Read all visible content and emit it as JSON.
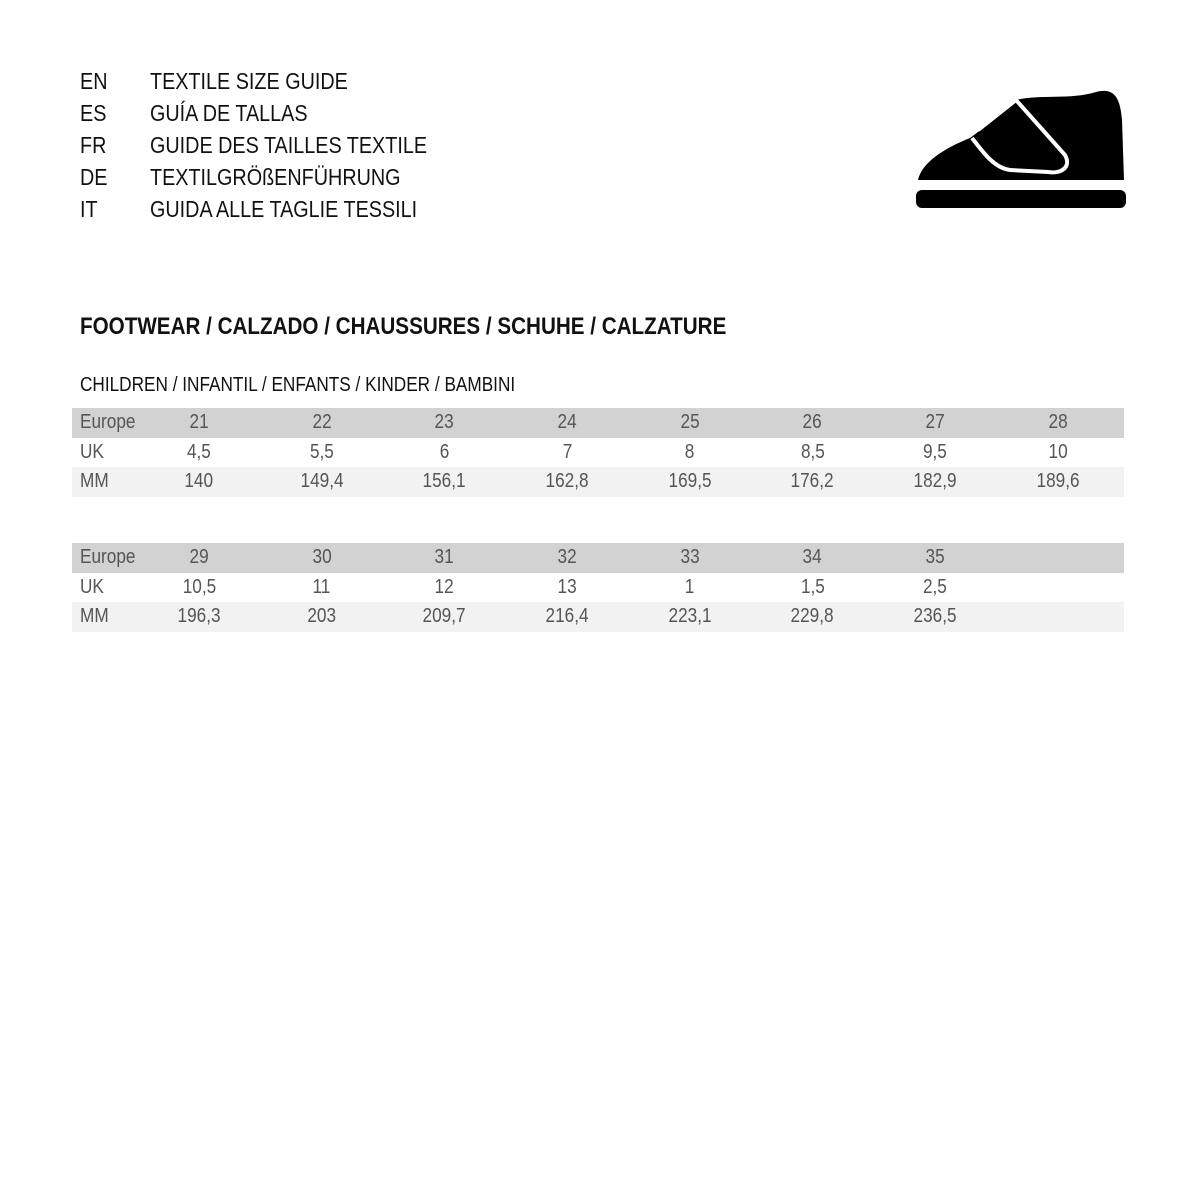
{
  "guide_titles": [
    {
      "code": "EN",
      "title": "TEXTILE SIZE GUIDE"
    },
    {
      "code": "ES",
      "title": "GUÍA DE TALLAS"
    },
    {
      "code": "FR",
      "title": "GUIDE DES TAILLES TEXTILE"
    },
    {
      "code": "DE",
      "title": "TEXTILGRÖßENFÜHRUNG"
    },
    {
      "code": "IT",
      "title": "GUIDA ALLE TAGLIE TESSILI"
    }
  ],
  "icon": "shoe-velcro-icon",
  "section_title": "FOOTWEAR / CALZADO / CHAUSSURES / SCHUHE / CALZATURE",
  "sub_title": "CHILDREN / INFANTIL / ENFANTS / KINDER / BAMBINI",
  "colors": {
    "header_row": "#d2d2d2",
    "mm_row": "#f2f2f2"
  },
  "tables": [
    {
      "rows": [
        {
          "label": "Europe",
          "values": [
            "21",
            "22",
            "23",
            "24",
            "25",
            "26",
            "27",
            "28"
          ]
        },
        {
          "label": "UK",
          "values": [
            "4,5",
            "5,5",
            "6",
            "7",
            "8",
            "8,5",
            "9,5",
            "10"
          ]
        },
        {
          "label": "MM",
          "values": [
            "140",
            "149,4",
            "156,1",
            "162,8",
            "169,5",
            "176,2",
            "182,9",
            "189,6"
          ]
        }
      ]
    },
    {
      "rows": [
        {
          "label": "Europe",
          "values": [
            "29",
            "30",
            "31",
            "32",
            "33",
            "34",
            "35"
          ]
        },
        {
          "label": "UK",
          "values": [
            "10,5",
            "11",
            "12",
            "13",
            "1",
            "1,5",
            "2,5"
          ]
        },
        {
          "label": "MM",
          "values": [
            "196,3",
            "203",
            "209,7",
            "216,4",
            "223,1",
            "229,8",
            "236,5"
          ]
        }
      ]
    }
  ]
}
